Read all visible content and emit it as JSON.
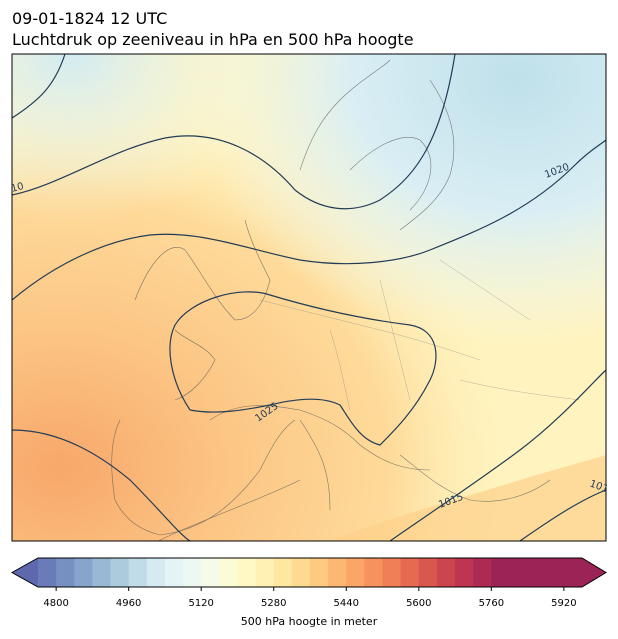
{
  "header": {
    "datetime": "09-01-1824 12 UTC",
    "subtitle": "Luchtdruk op zeeniveau in hPa en 500 hPa hoogte"
  },
  "isobar_labels": [
    "10",
    "1020",
    "1025",
    "1015",
    "101"
  ],
  "colorbar": {
    "label": "500 hPa hoogte in meter",
    "ticks": [
      "4800",
      "4960",
      "5120",
      "5280",
      "5440",
      "5600",
      "5760",
      "5920"
    ],
    "range": [
      4760,
      5960
    ],
    "step": 40,
    "colors": [
      "#5e68ae",
      "#6a7cb8",
      "#7690c2",
      "#86a4cc",
      "#98b8d6",
      "#acccde",
      "#c0dce8",
      "#d6eaf1",
      "#e4f3f6",
      "#eef8f3",
      "#f5fbe8",
      "#fbfcd6",
      "#fff8c4",
      "#fff0b3",
      "#ffe6a1",
      "#fed990",
      "#fdca80",
      "#fcb872",
      "#fba566",
      "#f7915d",
      "#f07e57",
      "#e66a52",
      "#da574f",
      "#cc444e",
      "#bd3550",
      "#ad2a53",
      "#9c2356"
    ]
  }
}
